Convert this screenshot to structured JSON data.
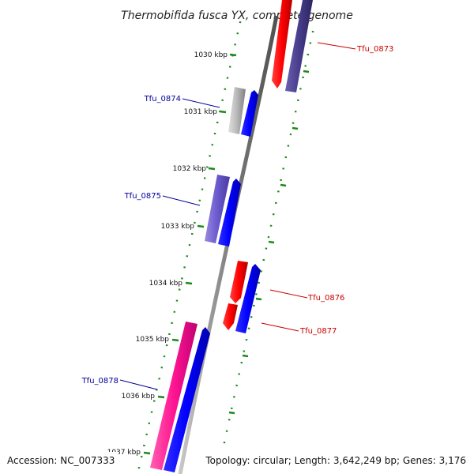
{
  "title": "Thermobifida fusca YX, complete genome",
  "accession": "Accession: NC_007333",
  "topology": "Topology: circular; Length: 3,642,249 bp; Genes: 3,176",
  "kbp_labels": [
    "1030 kbp",
    "1031 kbp",
    "1032 kbp",
    "1033 kbp",
    "1034 kbp",
    "1035 kbp",
    "1036 kbp",
    "1037 kbp"
  ],
  "genes": [
    {
      "name": "Tfu_0873",
      "strand": "forward",
      "color": "#cc0000"
    },
    {
      "name": "Tfu_0874",
      "strand": "reverse",
      "color": "#000099"
    },
    {
      "name": "Tfu_0875",
      "strand": "reverse",
      "color": "#000099"
    },
    {
      "name": "Tfu_0876",
      "strand": "forward",
      "color": "#cc0000"
    },
    {
      "name": "Tfu_0877",
      "strand": "forward",
      "color": "#cc0000"
    },
    {
      "name": "Tfu_0878",
      "strand": "reverse",
      "color": "#000099"
    }
  ],
  "colors": {
    "backbone": "#808080",
    "tick": "#1a8a1a",
    "cds_forward": "#ff0000",
    "cds_reverse": "#0000ff",
    "cds_dark": "#483d8b",
    "cds_gray": "#b0b0b0",
    "cds_purple": "#6a5acd",
    "cds_pink": "#ff1493"
  }
}
